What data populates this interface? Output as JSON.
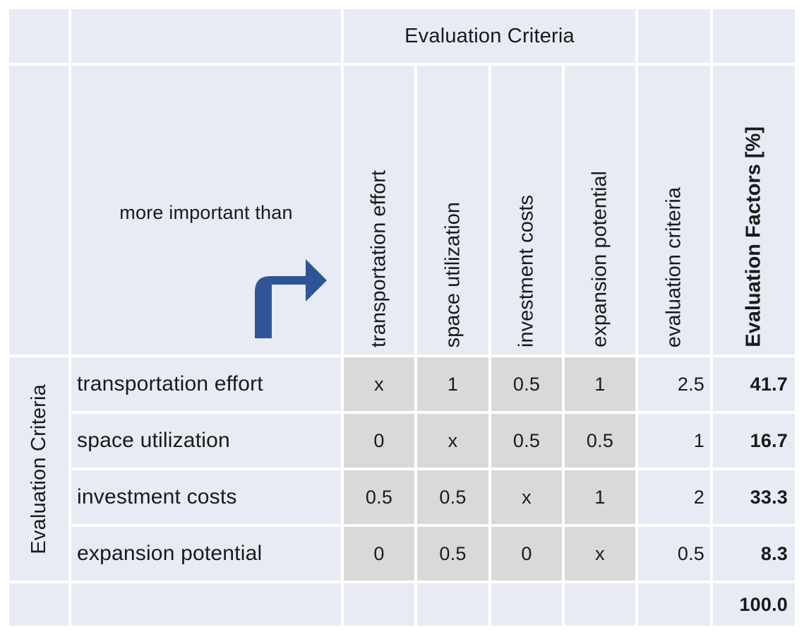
{
  "header": {
    "top_group_label": "Evaluation Criteria",
    "corner_label": "more important than",
    "arrow_icon": "turn-right-arrow-icon",
    "arrow_color": "#2f5597",
    "column_headers": [
      "transportation effort",
      "space utilization",
      "investment costs",
      "expansion potential",
      "evaluation criteria",
      "Evaluation Factors [%]"
    ]
  },
  "side_label": "Evaluation Criteria",
  "rows": [
    {
      "label": "transportation effort",
      "values": [
        "x",
        "1",
        "0.5",
        "1"
      ],
      "sum": "2.5",
      "factor": "41.7"
    },
    {
      "label": "space utilization",
      "values": [
        "0",
        "x",
        "0.5",
        "0.5"
      ],
      "sum": "1",
      "factor": "16.7"
    },
    {
      "label": "investment costs",
      "values": [
        "0.5",
        "0.5",
        "x",
        "1"
      ],
      "sum": "2",
      "factor": "33.3"
    },
    {
      "label": "expansion potential",
      "values": [
        "0",
        "0.5",
        "0",
        "x"
      ],
      "sum": "0.5",
      "factor": "8.3"
    }
  ],
  "total": "100.0",
  "colors": {
    "cell_background": "#e8ebf4",
    "matrix_background": "#d9d9d9",
    "grid_lines": "#ffffff"
  }
}
